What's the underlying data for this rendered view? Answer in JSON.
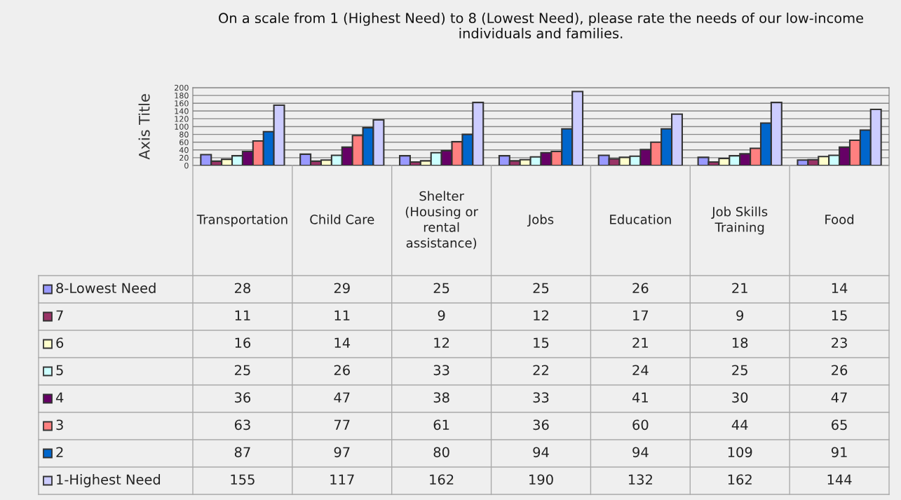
{
  "chart_data": {
    "type": "bar",
    "title": "On a scale from 1 (Highest Need) to 8 (Lowest Need), please rate the needs of our low-income individuals and families.",
    "ylabel": "Axis Title",
    "categories": [
      "Transportation",
      "Child Care",
      "Shelter (Housing or rental assistance)",
      "Jobs",
      "Education",
      "Job Skills Training",
      "Food"
    ],
    "series": [
      {
        "name": "8-Lowest Need",
        "color": "#9999ff",
        "values": [
          28,
          29,
          25,
          25,
          26,
          21,
          14
        ]
      },
      {
        "name": "7",
        "color": "#993366",
        "values": [
          11,
          11,
          9,
          12,
          17,
          9,
          15
        ]
      },
      {
        "name": "6",
        "color": "#ffffcc",
        "values": [
          16,
          14,
          12,
          15,
          21,
          18,
          23
        ]
      },
      {
        "name": "5",
        "color": "#ccffff",
        "values": [
          25,
          26,
          33,
          22,
          24,
          25,
          26
        ]
      },
      {
        "name": "4",
        "color": "#660066",
        "values": [
          36,
          47,
          38,
          33,
          41,
          30,
          47
        ]
      },
      {
        "name": "3",
        "color": "#ff8080",
        "values": [
          63,
          77,
          61,
          36,
          60,
          44,
          65
        ]
      },
      {
        "name": "2",
        "color": "#0066cc",
        "values": [
          87,
          97,
          80,
          94,
          94,
          109,
          91
        ]
      },
      {
        "name": "1-Highest Need",
        "color": "#ccccff",
        "values": [
          155,
          117,
          162,
          190,
          132,
          162,
          144
        ]
      }
    ],
    "ylim": [
      0,
      200
    ],
    "yticks": [
      0,
      20,
      40,
      60,
      80,
      100,
      120,
      140,
      160,
      180,
      200
    ],
    "grid": "y",
    "data_labels": true,
    "legend": "bottom left"
  }
}
